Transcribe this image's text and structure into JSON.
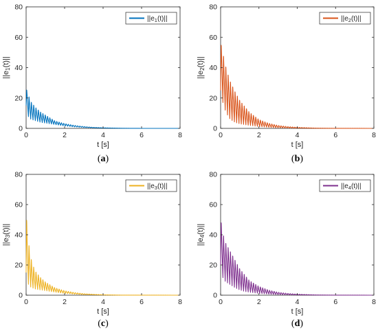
{
  "chart_data": [
    {
      "type": "line",
      "panel_label": "(a)",
      "xlabel": "t [s]",
      "ylabel": "||e1(t)||",
      "legend": "||e1(t)||",
      "legend_position": "top-right",
      "xlim": [
        0,
        8
      ],
      "ylim": [
        0,
        80
      ],
      "xticks": [
        0,
        2,
        4,
        6,
        8
      ],
      "yticks": [
        0,
        20,
        40,
        60,
        80
      ],
      "color": "#0072BD",
      "envelope": {
        "t": [
          0,
          0.1,
          0.25,
          0.5,
          0.75,
          1.0,
          1.25,
          1.5,
          2,
          2.5,
          3,
          3.5,
          4,
          5,
          6,
          8
        ],
        "upper": [
          27,
          23,
          18,
          14,
          11,
          9,
          7,
          5,
          3.2,
          2,
          1.2,
          0.7,
          0.4,
          0.1,
          0,
          0
        ],
        "lower": [
          15,
          8,
          6,
          5,
          4,
          3.5,
          3,
          2.5,
          1.6,
          1,
          0.6,
          0.35,
          0.2,
          0.05,
          0,
          0
        ]
      },
      "oscillation_period": 0.12
    },
    {
      "type": "line",
      "panel_label": "(b)",
      "xlabel": "t [s]",
      "ylabel": "||e2(t)||",
      "legend": "||e2(t)||",
      "legend_position": "top-right",
      "xlim": [
        0,
        8
      ],
      "ylim": [
        0,
        80
      ],
      "xticks": [
        0,
        2,
        4,
        6,
        8
      ],
      "yticks": [
        0,
        20,
        40,
        60,
        80
      ],
      "color": "#D95319",
      "envelope": {
        "t": [
          0,
          0.15,
          0.3,
          0.5,
          0.75,
          1.0,
          1.25,
          1.5,
          2,
          2.5,
          3,
          3.5,
          4,
          5,
          6,
          8
        ],
        "upper": [
          58,
          49,
          40,
          32,
          25,
          19,
          15,
          11,
          6,
          3.5,
          2,
          1.2,
          0.7,
          0.2,
          0.05,
          0
        ],
        "lower": [
          25,
          15,
          10,
          6,
          4,
          3,
          2.5,
          2,
          1.2,
          0.7,
          0.4,
          0.25,
          0.15,
          0.05,
          0,
          0
        ]
      },
      "oscillation_period": 0.12
    },
    {
      "type": "line",
      "panel_label": "(c)",
      "xlabel": "t [s]",
      "ylabel": "||e3(t)||",
      "legend": "||e3(t)||",
      "legend_position": "top-right",
      "xlim": [
        0,
        8
      ],
      "ylim": [
        0,
        80
      ],
      "xticks": [
        0,
        2,
        4,
        6,
        8
      ],
      "yticks": [
        0,
        20,
        40,
        60,
        80
      ],
      "color": "#EDB120",
      "envelope": {
        "t": [
          0,
          0.05,
          0.15,
          0.3,
          0.5,
          0.75,
          1.0,
          1.25,
          1.5,
          2,
          2.5,
          3,
          3.5,
          4,
          5,
          8
        ],
        "upper": [
          60,
          45,
          34,
          22,
          16,
          12,
          9,
          7,
          5,
          3,
          1.8,
          1,
          0.6,
          0.3,
          0.05,
          0
        ],
        "lower": [
          15,
          10,
          6,
          5,
          4,
          3.5,
          3,
          2.5,
          2,
          1.2,
          0.7,
          0.4,
          0.25,
          0.1,
          0,
          0
        ]
      },
      "oscillation_period": 0.12
    },
    {
      "type": "line",
      "panel_label": "(d)",
      "xlabel": "t [s]",
      "ylabel": "||e4(t)||",
      "legend": "||e4(t)||",
      "legend_position": "top-right",
      "xlim": [
        0,
        8
      ],
      "ylim": [
        0,
        80
      ],
      "xticks": [
        0,
        2,
        4,
        6,
        8
      ],
      "yticks": [
        0,
        20,
        40,
        60,
        80
      ],
      "color": "#7E2F8E",
      "envelope": {
        "t": [
          0,
          0.1,
          0.25,
          0.5,
          0.75,
          1.0,
          1.25,
          1.5,
          2,
          2.5,
          3,
          3.5,
          4,
          5,
          6,
          8
        ],
        "upper": [
          52,
          43,
          36,
          30,
          24,
          18,
          14,
          10,
          6,
          3.5,
          2,
          1.2,
          0.7,
          0.2,
          0.05,
          0
        ],
        "lower": [
          20,
          12,
          9,
          7,
          5,
          3.5,
          2.5,
          2,
          1.2,
          0.7,
          0.4,
          0.25,
          0.15,
          0.05,
          0,
          0
        ]
      },
      "oscillation_period": 0.12
    }
  ]
}
